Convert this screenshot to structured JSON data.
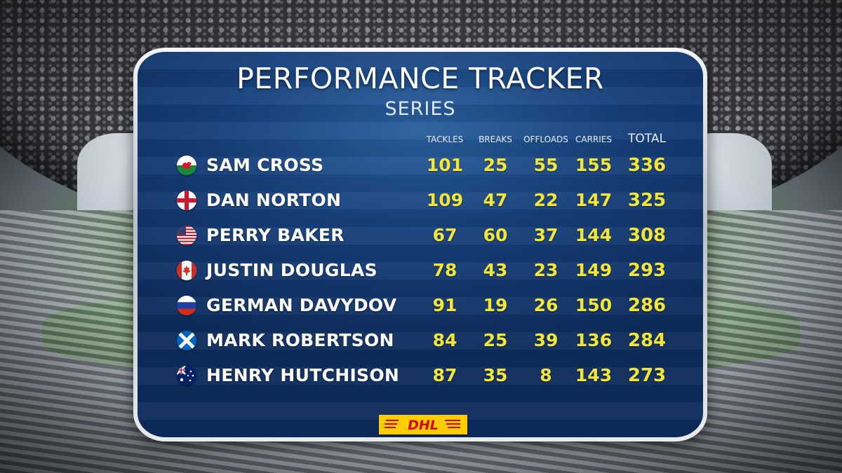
{
  "board": {
    "title": "PERFORMANCE TRACKER",
    "subtitle": "SERIES",
    "columns": {
      "tackles": "TACKLES",
      "breaks": "BREAKS",
      "offloads": "OFFLOADS",
      "carries": "CARRIES",
      "total": "TOTAL"
    },
    "players": [
      {
        "name": "SAM CROSS",
        "flag": "wales-flag-icon",
        "tackles": "101",
        "breaks": "25",
        "offloads": "55",
        "carries": "155",
        "total": "336"
      },
      {
        "name": "DAN NORTON",
        "flag": "england-flag-icon",
        "tackles": "109",
        "breaks": "47",
        "offloads": "22",
        "carries": "147",
        "total": "325"
      },
      {
        "name": "PERRY BAKER",
        "flag": "usa-flag-icon",
        "tackles": "67",
        "breaks": "60",
        "offloads": "37",
        "carries": "144",
        "total": "308"
      },
      {
        "name": "JUSTIN DOUGLAS",
        "flag": "canada-flag-icon",
        "tackles": "78",
        "breaks": "43",
        "offloads": "23",
        "carries": "149",
        "total": "293"
      },
      {
        "name": "GERMAN DAVYDOV",
        "flag": "russia-flag-icon",
        "tackles": "91",
        "breaks": "19",
        "offloads": "26",
        "carries": "150",
        "total": "286"
      },
      {
        "name": "MARK ROBERTSON",
        "flag": "scotland-flag-icon",
        "tackles": "84",
        "breaks": "25",
        "offloads": "39",
        "carries": "136",
        "total": "284"
      },
      {
        "name": "HENRY HUTCHISON",
        "flag": "australia-flag-icon",
        "tackles": "87",
        "breaks": "35",
        "offloads": "8",
        "carries": "143",
        "total": "273"
      }
    ],
    "sponsor": {
      "text": "DHL",
      "icon": "dhl-logo",
      "bg_color": "#ffcc00",
      "text_color": "#d40511"
    }
  },
  "colors": {
    "stat_yellow": "#f2e63a",
    "board_blue": "#163f7a"
  }
}
